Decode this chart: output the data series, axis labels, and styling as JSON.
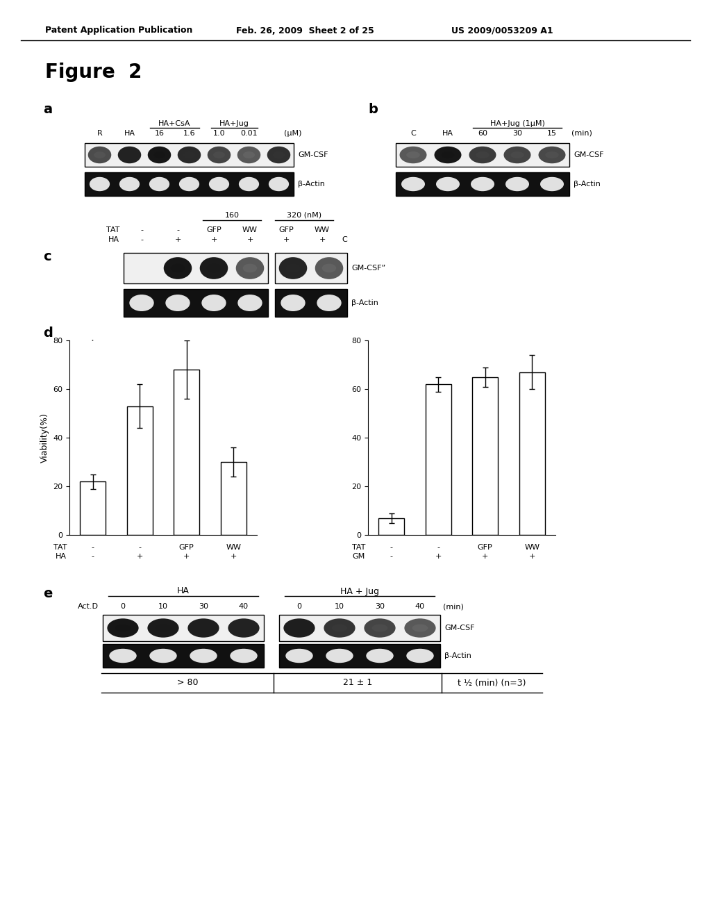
{
  "header_left": "Patent Application Publication",
  "header_mid": "Feb. 26, 2009  Sheet 2 of 25",
  "header_right": "US 2009/0053209 A1",
  "figure_title": "Figure  2",
  "panel_a": {
    "label": "a",
    "gel_gmcsf_bands": [
      0.25,
      0.85,
      1.0,
      0.75,
      0.35,
      0.05,
      0.65
    ],
    "gel_actin_bands": [
      1,
      1,
      1,
      1,
      1,
      1,
      1
    ],
    "label_gmcsf": "GM-CSF",
    "label_actin": "β-Actin"
  },
  "panel_b": {
    "label": "b",
    "gel_gmcsf_bands": [
      0.05,
      1.0,
      0.5,
      0.38,
      0.3
    ],
    "gel_actin_bands": [
      1,
      1,
      1,
      1,
      1
    ],
    "label_gmcsf": "GM-CSF",
    "label_actin": "β-Actin"
  },
  "panel_c": {
    "label": "c",
    "gel_gmcsf_bands": [
      0.0,
      1.0,
      0.95,
      0.05,
      0.8,
      0.05
    ],
    "gel_actin_bands": [
      1,
      1,
      1,
      1,
      1,
      1
    ],
    "label_gmcsf": "GM-CSF",
    "label_actin": "β-Actin"
  },
  "panel_d_left": {
    "label": "d",
    "bars": [
      22,
      53,
      68,
      30
    ],
    "errors": [
      3,
      9,
      12,
      6
    ],
    "ylabel": "Viability(%)",
    "ylim": [
      0,
      80
    ],
    "yticks": [
      0,
      20,
      40,
      60,
      80
    ],
    "row1_label": "TAT",
    "row1_vals": [
      "-",
      "-",
      "GFP",
      "WW"
    ],
    "row2_label": "HA",
    "row2_vals": [
      "-",
      "+",
      "+",
      "+"
    ]
  },
  "panel_d_right": {
    "bars": [
      7,
      62,
      65,
      67
    ],
    "errors": [
      2,
      3,
      4,
      7
    ],
    "ylim": [
      0,
      80
    ],
    "yticks": [
      0,
      20,
      40,
      60,
      80
    ],
    "row1_label": "TAT",
    "row1_vals": [
      "-",
      "-",
      "GFP",
      "WW"
    ],
    "row2_label": "GM",
    "row2_vals": [
      "-",
      "+",
      "+",
      "+"
    ]
  },
  "panel_e": {
    "label": "e",
    "ha_label": "HA",
    "ha_jug_label": "HA + Jug",
    "actd_label": "Act.D",
    "ha_timepoints": [
      "0",
      "10",
      "30",
      "40"
    ],
    "ha_jug_timepoints": [
      "0",
      "10",
      "30",
      "40"
    ],
    "ha_gmcsf_bands": [
      1.0,
      0.95,
      0.9,
      0.85
    ],
    "ha_jug_gmcsf_bands": [
      0.9,
      0.6,
      0.35,
      0.05
    ],
    "ha_actin_bands": [
      1,
      1,
      1,
      1
    ],
    "ha_jug_actin_bands": [
      1,
      1,
      1,
      1
    ],
    "label_gmcsf": "GM-CSF",
    "label_actin": "β-Actin",
    "table_ha": "> 80",
    "table_ha_jug": "21 ± 1",
    "table_label": "t ½ (min) (n=3)"
  },
  "bg_color": "white",
  "text_color": "black"
}
